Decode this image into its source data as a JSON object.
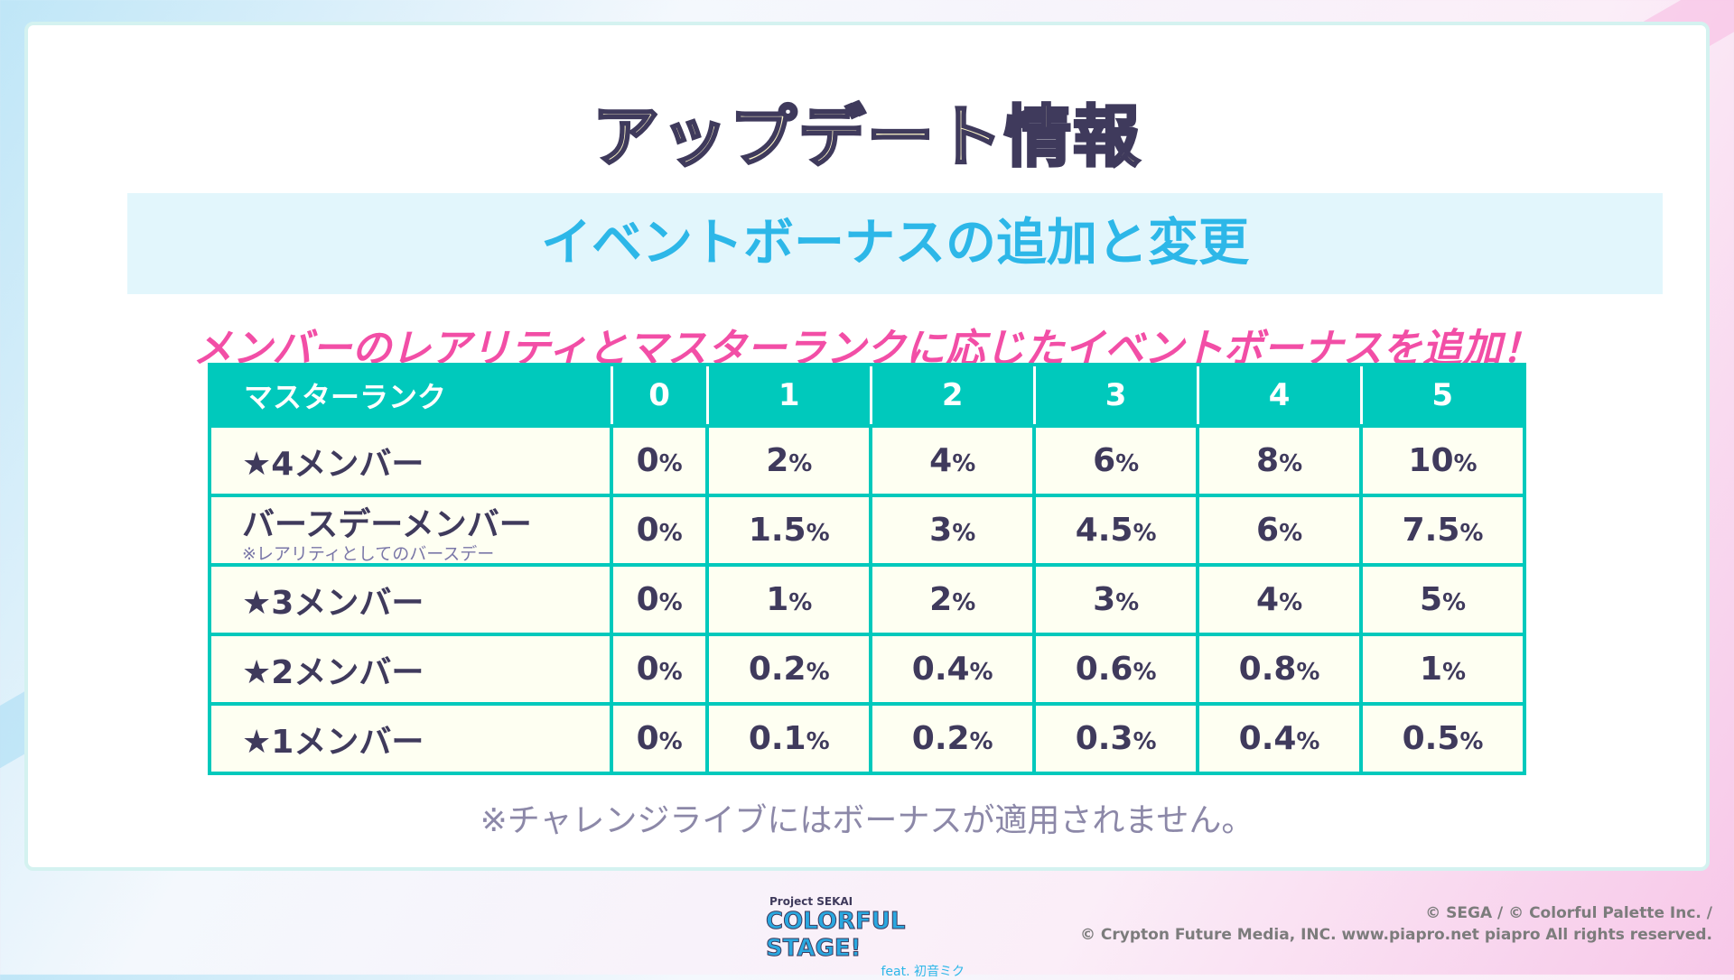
{
  "title": "アップデート情報",
  "subtitle": "イベントボーナスの追加と変更",
  "headline": "メンバーのレアリティとマスターランクに応じたイベントボーナスを追加！",
  "table": {
    "header": [
      "マスターランク",
      "0",
      "1",
      "2",
      "3",
      "4",
      "5"
    ],
    "rows": [
      {
        "label": "★4メンバー",
        "sub": "",
        "values": [
          "0",
          "2",
          "4",
          "6",
          "8",
          "10"
        ]
      },
      {
        "label": "バースデーメンバー",
        "sub": "※レアリティとしてのバースデー",
        "values": [
          "0",
          "1.5",
          "3",
          "4.5",
          "6",
          "7.5"
        ]
      },
      {
        "label": "★3メンバー",
        "sub": "",
        "values": [
          "0",
          "1",
          "2",
          "3",
          "4",
          "5"
        ]
      },
      {
        "label": "★2メンバー",
        "sub": "",
        "values": [
          "0",
          "0.2",
          "0.4",
          "0.6",
          "0.8",
          "1"
        ]
      },
      {
        "label": "★1メンバー",
        "sub": "",
        "values": [
          "0",
          "0.1",
          "0.2",
          "0.3",
          "0.4",
          "0.5"
        ]
      }
    ],
    "unit": "%"
  },
  "note": "※チャレンジライブにはボーナスが適用されません。",
  "logo": {
    "line1": "Project SEKAI",
    "line2": "COLORFUL STAGE!",
    "line3": "feat. 初音ミク"
  },
  "copyright": {
    "line1": "© SEGA / © Colorful Palette Inc. /",
    "line2": "© Crypton Future Media, INC. www.piapro.net piapro All rights reserved."
  },
  "colors": {
    "teal": "#00c9bc",
    "pink": "#f24ea6",
    "blue": "#2db7e8",
    "text": "#3f3a5c"
  }
}
